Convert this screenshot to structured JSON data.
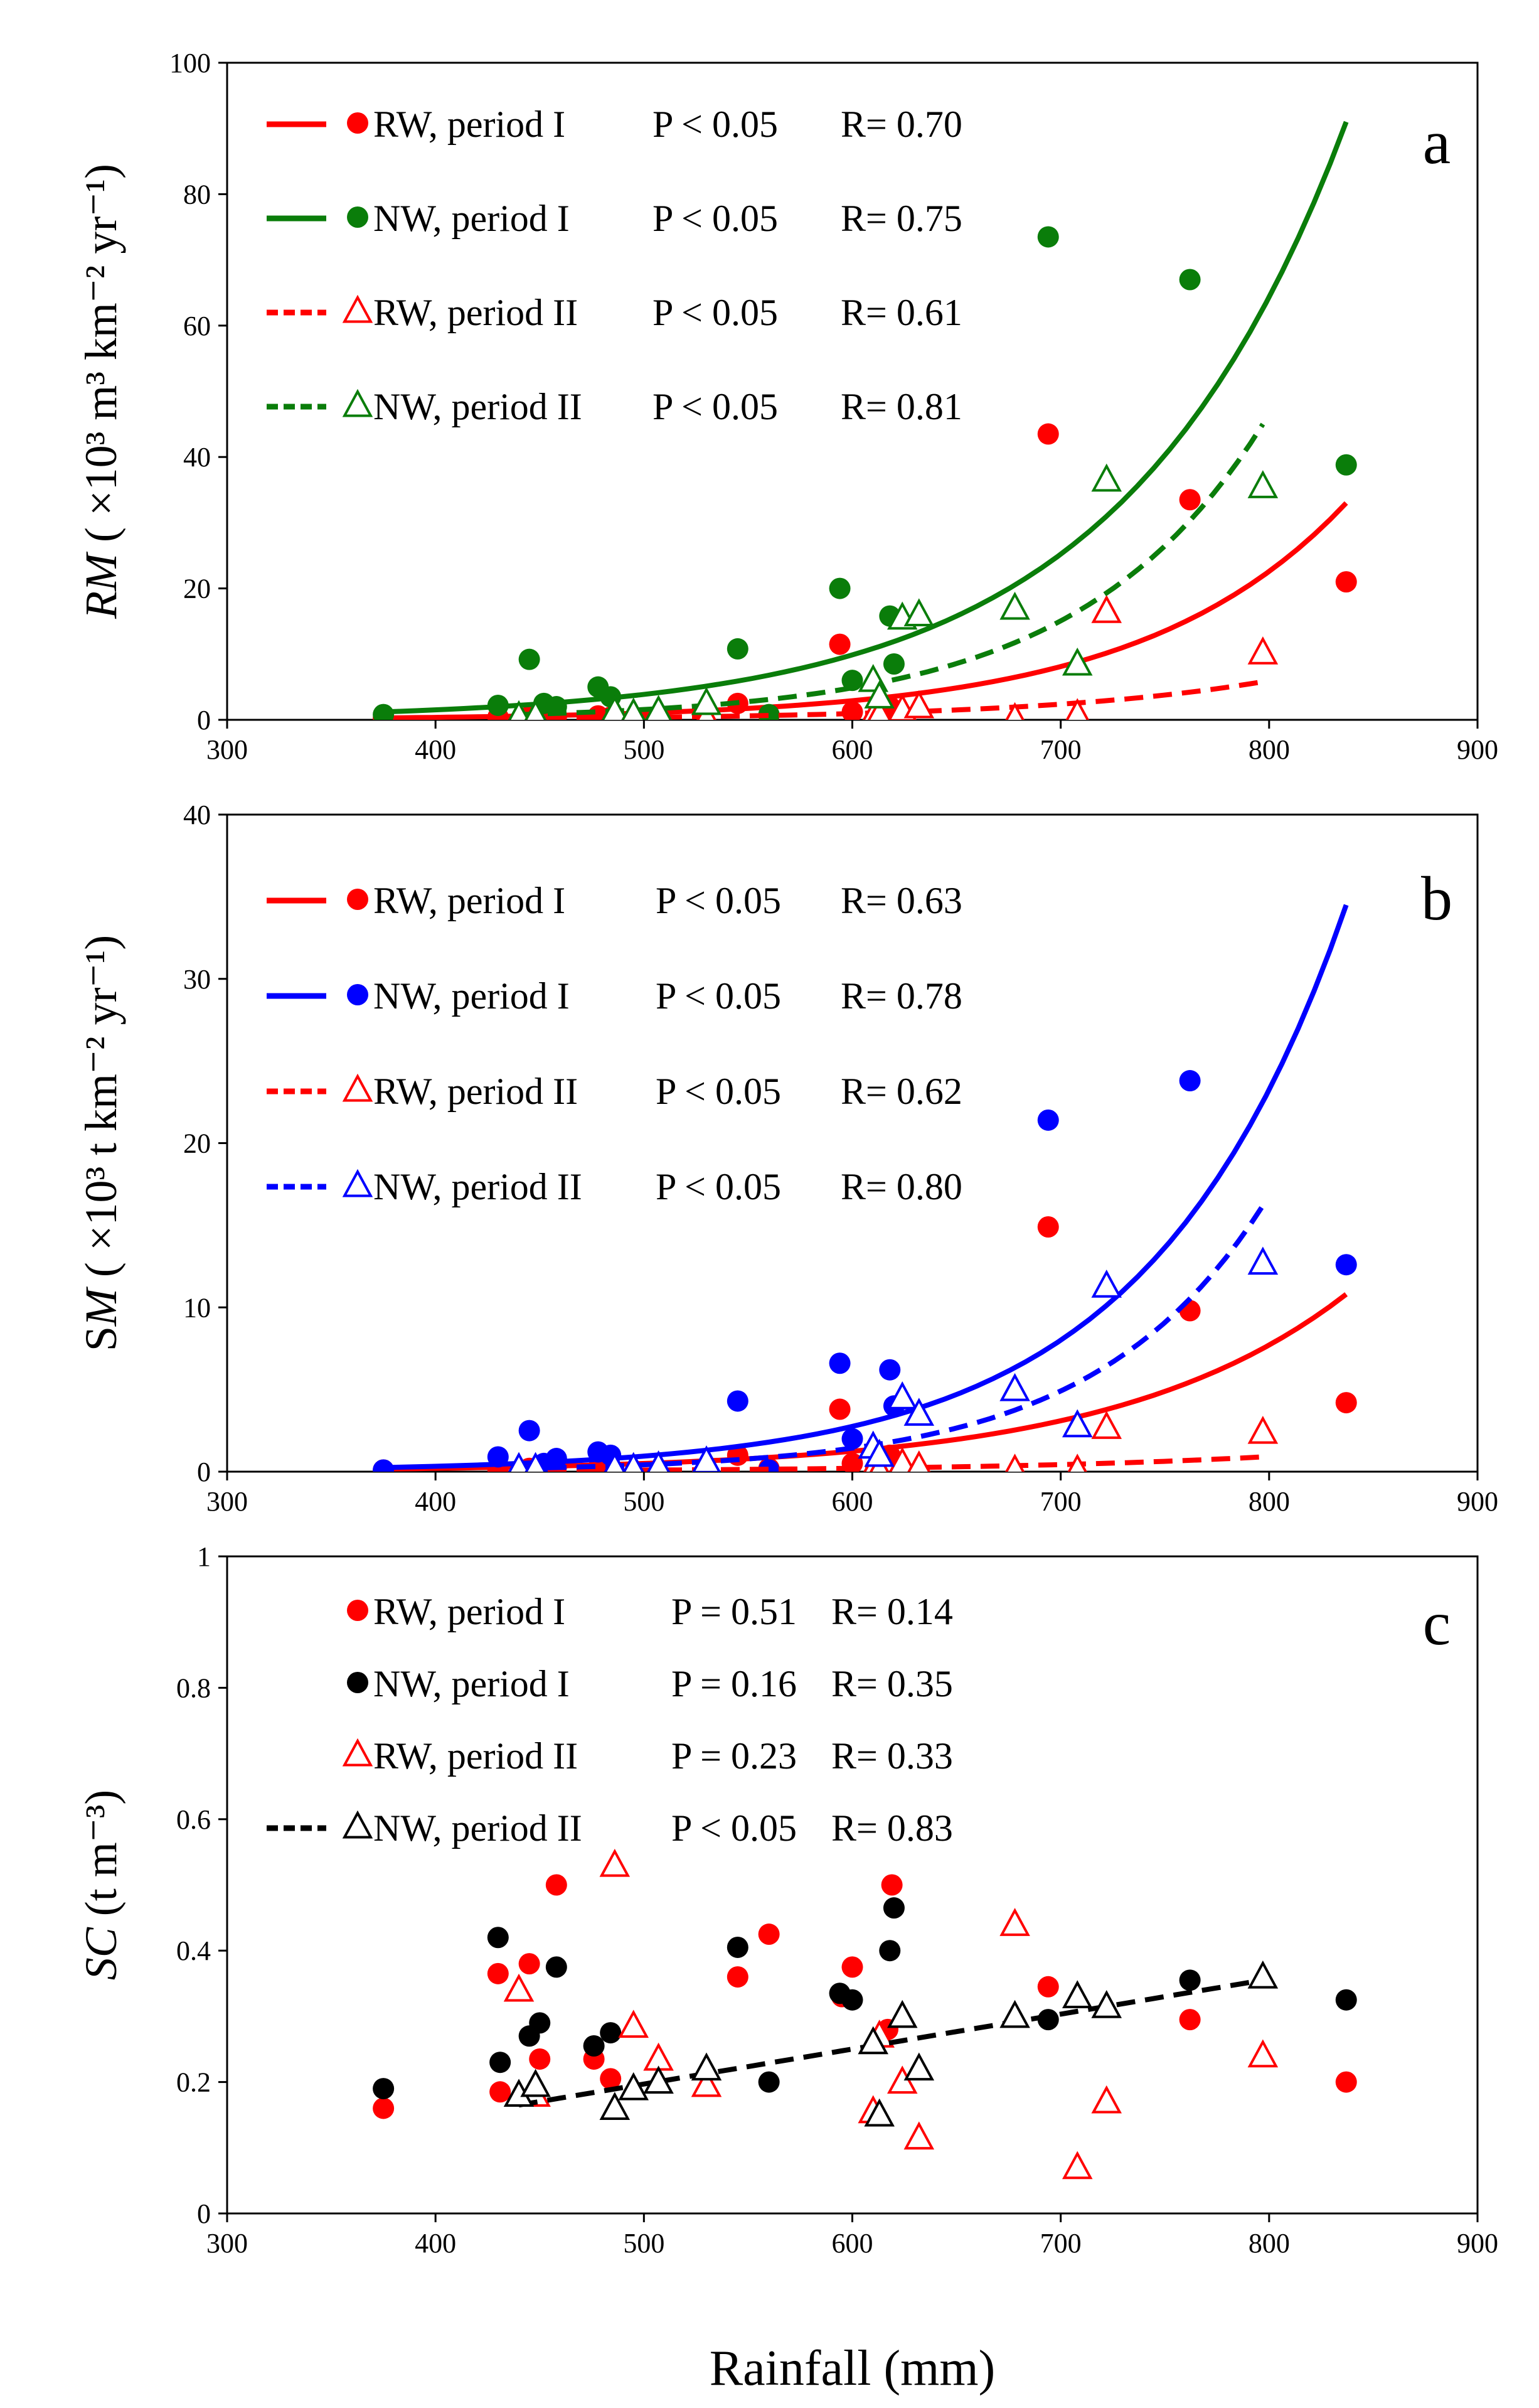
{
  "colors": {
    "RW": "#ff0000",
    "NW_a": "#0a7d0a",
    "NW_b": "#0000ff",
    "NW_c": "#000000",
    "RW_c": "#ff0000"
  },
  "chart_data": [
    {
      "type": "scatter",
      "panel_label": "a",
      "ylabel_it": "RM",
      "ylabel_rest": " ( ×10³ m³ km⁻² yr⁻¹)",
      "xlim": [
        300,
        900
      ],
      "ylim": [
        0,
        100
      ],
      "xticks": [
        "300",
        "400",
        "500",
        "600",
        "700",
        "800",
        "900"
      ],
      "yticks": [
        "0",
        "20",
        "40",
        "60",
        "80",
        "100"
      ],
      "legend": [
        {
          "name": "RW, period I",
          "p": "P < 0.05",
          "r": "R= 0.70"
        },
        {
          "name": "NW, period I",
          "p": "P < 0.05",
          "r": "R= 0.75"
        },
        {
          "name": "RW, period II",
          "p": "P < 0.05",
          "r": "R= 0.61"
        },
        {
          "name": "NW, period II",
          "p": "P < 0.05",
          "r": "R= 0.81"
        }
      ],
      "series": [
        {
          "name": "RW, period I",
          "color": "#ff0000",
          "marker": "circle",
          "line": "solid",
          "fit": {
            "x": [
              375,
              837
            ],
            "y": [
              0.29,
              33
            ]
          },
          "x": [
            375,
            430,
            445,
            452,
            458,
            478,
            484,
            545,
            560,
            594,
            600,
            618,
            694,
            762,
            837
          ],
          "y": [
            0.3,
            0.4,
            0.5,
            0.6,
            0.5,
            0.6,
            0.4,
            2.5,
            0.7,
            11.5,
            1.2,
            2.0,
            43.5,
            33.5,
            21.0
          ]
        },
        {
          "name": "NW, period I",
          "color": "#0a7d0a",
          "marker": "circle",
          "line": "solid",
          "fit": {
            "x": [
              375,
              837
            ],
            "y": [
              1.2,
              91
            ]
          },
          "x": [
            375,
            430,
            445,
            452,
            458,
            478,
            484,
            545,
            560,
            594,
            600,
            618,
            620,
            694,
            762,
            837
          ],
          "y": [
            0.8,
            2.2,
            9.2,
            2.5,
            2.0,
            5.0,
            3.5,
            10.8,
            0.8,
            20.0,
            6.0,
            15.8,
            8.5,
            73.5,
            67.0,
            38.8
          ]
        },
        {
          "name": "RW, period II",
          "color": "#ff0000",
          "marker": "triangle",
          "line": "dashed",
          "fit": {
            "x": [
              440,
              797
            ],
            "y": [
              0.22,
              5.8
            ]
          },
          "x": [
            440,
            448,
            486,
            495,
            507,
            530,
            610,
            613,
            624,
            632,
            678,
            708,
            722,
            797
          ],
          "y": [
            0.3,
            0.3,
            0.4,
            0.3,
            0.3,
            0.3,
            0.5,
            0.8,
            1.5,
            2.0,
            0.2,
            0.8,
            16.5,
            10.2
          ]
        },
        {
          "name": "NW, period II",
          "color": "#0a7d0a",
          "marker": "triangle",
          "line": "dashed",
          "fit": {
            "x": [
              440,
              797
            ],
            "y": [
              0.8,
              45
            ]
          },
          "x": [
            440,
            448,
            486,
            495,
            507,
            530,
            610,
            613,
            624,
            632,
            678,
            708,
            722,
            797
          ],
          "y": [
            0.5,
            0.6,
            1.2,
            0.9,
            1.3,
            2.5,
            6.0,
            3.5,
            15.5,
            16.0,
            17.0,
            8.5,
            36.5,
            35.5
          ]
        }
      ]
    },
    {
      "type": "scatter",
      "panel_label": "b",
      "ylabel_it": "M",
      "ylabel_pre": "S",
      "ylabel_rest": " ( ×10³ t km⁻² yr⁻¹)",
      "xlim": [
        300,
        900
      ],
      "ylim": [
        0,
        40
      ],
      "xticks": [
        "300",
        "400",
        "500",
        "600",
        "700",
        "800",
        "900"
      ],
      "yticks": [
        "0",
        "10",
        "20",
        "30",
        "40"
      ],
      "legend": [
        {
          "name": "RW, period I",
          "p": "P < 0.05",
          "r": "R= 0.63"
        },
        {
          "name": "NW, period I",
          "p": "P < 0.05",
          "r": "R= 0.78"
        },
        {
          "name": "RW, period II",
          "p": "P < 0.05",
          "r": "R= 0.62"
        },
        {
          "name": "NW, period II",
          "p": "P < 0.05",
          "r": "R= 0.80"
        }
      ],
      "series": [
        {
          "name": "RW, period I",
          "color": "#ff0000",
          "marker": "circle",
          "line": "solid",
          "fit": {
            "x": [
              375,
              837
            ],
            "y": [
              0.16,
              10.8
            ]
          },
          "x": [
            375,
            430,
            445,
            452,
            458,
            478,
            484,
            545,
            560,
            594,
            600,
            618,
            694,
            762,
            837
          ],
          "y": [
            0.1,
            0.1,
            0.2,
            0.3,
            0.3,
            0.2,
            0.1,
            1.0,
            0.2,
            3.8,
            0.5,
            1.0,
            14.9,
            9.8,
            4.2
          ]
        },
        {
          "name": "NW, period I",
          "color": "#0000ff",
          "marker": "circle",
          "line": "solid",
          "fit": {
            "x": [
              375,
              837
            ],
            "y": [
              0.25,
              34.5
            ]
          },
          "x": [
            375,
            430,
            445,
            452,
            458,
            478,
            484,
            545,
            560,
            594,
            600,
            618,
            620,
            694,
            762,
            837
          ],
          "y": [
            0.1,
            0.9,
            2.5,
            0.5,
            0.8,
            1.2,
            1.0,
            4.3,
            0.1,
            6.6,
            2.0,
            6.2,
            4.0,
            21.4,
            23.8,
            12.6
          ]
        },
        {
          "name": "RW, period II",
          "color": "#ff0000",
          "marker": "triangle",
          "line": "dashed",
          "fit": {
            "x": [
              440,
              797
            ],
            "y": [
              0.06,
              0.9
            ]
          },
          "x": [
            440,
            448,
            486,
            495,
            507,
            530,
            610,
            613,
            624,
            632,
            678,
            708,
            722,
            797
          ],
          "y": [
            0.1,
            0.1,
            0.1,
            0.1,
            0.1,
            0.1,
            0.1,
            0.1,
            0.5,
            0.3,
            0.1,
            0.1,
            2.7,
            2.4
          ]
        },
        {
          "name": "NW, period II",
          "color": "#0000ff",
          "marker": "triangle",
          "line": "dashed",
          "fit": {
            "x": [
              440,
              797
            ],
            "y": [
              0.2,
              16.2
            ]
          },
          "x": [
            440,
            448,
            486,
            495,
            507,
            530,
            610,
            613,
            624,
            632,
            678,
            708,
            722,
            797
          ],
          "y": [
            0.2,
            0.2,
            0.2,
            0.2,
            0.3,
            0.6,
            1.5,
            1.0,
            4.5,
            3.5,
            5.0,
            2.8,
            11.3,
            12.7
          ]
        }
      ]
    },
    {
      "type": "scatter",
      "panel_label": "c",
      "ylabel_it": "SC",
      "ylabel_rest": "  (t m⁻³)",
      "xlabel": "Rainfall (mm)",
      "xlim": [
        300,
        900
      ],
      "ylim": [
        0,
        1
      ],
      "xticks": [
        "300",
        "400",
        "500",
        "600",
        "700",
        "800",
        "900"
      ],
      "yticks": [
        "0",
        "0.2",
        "0.4",
        "0.6",
        "0.8",
        "1"
      ],
      "legend": [
        {
          "name": "RW, period I",
          "p": "P = 0.51",
          "r": "R= 0.14"
        },
        {
          "name": "NW, period I",
          "p": "P = 0.16",
          "r": "R= 0.35"
        },
        {
          "name": "RW, period II",
          "p": "P = 0.23",
          "r": "R= 0.33"
        },
        {
          "name": "NW, period II",
          "p": "P < 0.05",
          "r": "R= 0.83"
        }
      ],
      "series": [
        {
          "name": "RW, period I",
          "color": "#ff0000",
          "marker": "circle",
          "line": "none",
          "x": [
            375,
            430,
            431,
            445,
            450,
            458,
            476,
            484,
            545,
            560,
            595,
            600,
            617,
            619,
            694,
            762,
            837
          ],
          "y": [
            0.16,
            0.365,
            0.185,
            0.38,
            0.235,
            0.5,
            0.235,
            0.205,
            0.36,
            0.425,
            0.33,
            0.375,
            0.28,
            0.5,
            0.345,
            0.295,
            0.2
          ]
        },
        {
          "name": "NW, period I",
          "color": "#000000",
          "marker": "circle",
          "line": "none",
          "x": [
            375,
            430,
            431,
            445,
            450,
            458,
            476,
            484,
            545,
            560,
            594,
            600,
            618,
            620,
            694,
            762,
            837
          ],
          "y": [
            0.19,
            0.42,
            0.23,
            0.27,
            0.29,
            0.375,
            0.255,
            0.275,
            0.405,
            0.2,
            0.335,
            0.325,
            0.4,
            0.465,
            0.295,
            0.355,
            0.325
          ]
        },
        {
          "name": "RW, period II",
          "color": "#ff0000",
          "marker": "triangle",
          "line": "none",
          "x": [
            440,
            448,
            486,
            495,
            507,
            530,
            610,
            613,
            624,
            632,
            678,
            708,
            722,
            797
          ],
          "y": [
            0.34,
            0.18,
            0.53,
            0.285,
            0.235,
            0.195,
            0.155,
            0.27,
            0.2,
            0.115,
            0.44,
            0.07,
            0.17,
            0.24
          ]
        },
        {
          "name": "NW, period II",
          "color": "#000000",
          "marker": "triangle",
          "line": "dashed",
          "fit": {
            "x": [
              440,
              797
            ],
            "y": [
              0.165,
              0.355
            ]
          },
          "x": [
            440,
            448,
            486,
            495,
            507,
            530,
            610,
            613,
            624,
            632,
            678,
            708,
            722,
            797
          ],
          "y": [
            0.18,
            0.195,
            0.16,
            0.19,
            0.2,
            0.22,
            0.26,
            0.15,
            0.3,
            0.22,
            0.3,
            0.33,
            0.315,
            0.36
          ]
        }
      ]
    }
  ]
}
